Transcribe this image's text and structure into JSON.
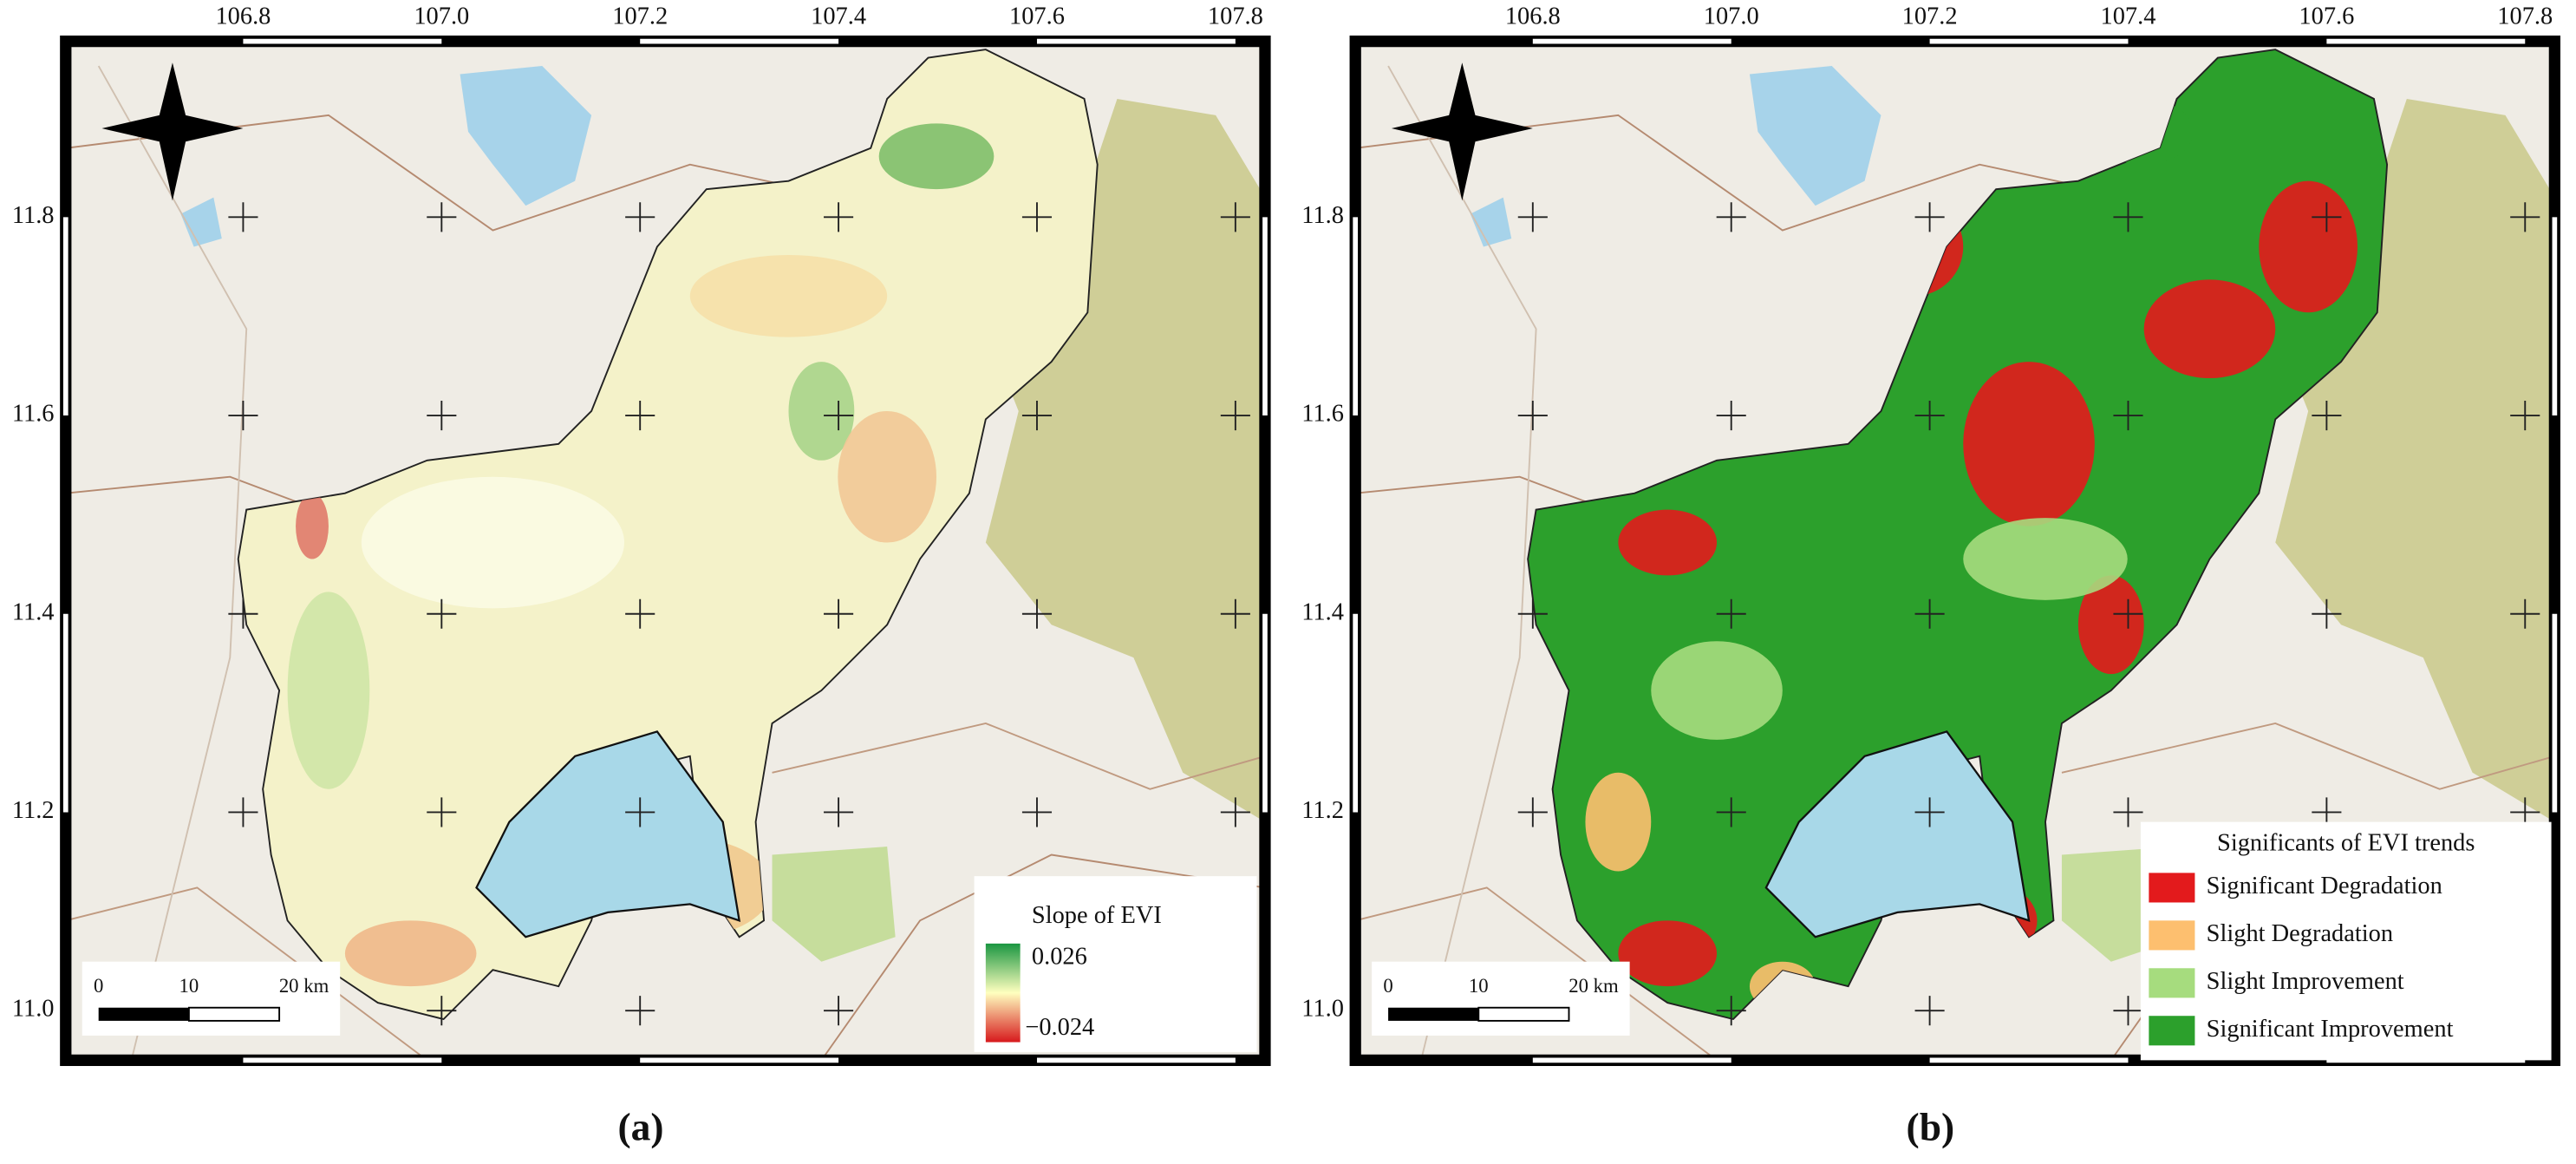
{
  "panels": [
    {
      "label": "(a)",
      "longitude_ticks": [
        "106.8",
        "107.0",
        "107.2",
        "107.4",
        "107.6",
        "107.8"
      ],
      "latitude_ticks": [
        "11.8",
        "11.6",
        "11.4",
        "11.2",
        "11.0"
      ],
      "scale_bar": [
        "0",
        "10",
        "20 km"
      ],
      "legend": {
        "title": "Slope of EVI",
        "max": "0.026",
        "min": "−0.024"
      }
    },
    {
      "label": "(b)",
      "longitude_ticks": [
        "106.8",
        "107.0",
        "107.2",
        "107.4",
        "107.6",
        "107.8"
      ],
      "latitude_ticks": [
        "11.8",
        "11.6",
        "11.4",
        "11.2",
        "11.0"
      ],
      "scale_bar": [
        "0",
        "10",
        "20 km"
      ],
      "legend": {
        "title": "Significants of EVI trends",
        "items": [
          {
            "label": "Significant Degradation",
            "color": "#e31a1c"
          },
          {
            "label": "Slight Degradation",
            "color": "#fdbf6f"
          },
          {
            "label": "Slight Improvement",
            "color": "#a6dc7e"
          },
          {
            "label": "Significant Improvement",
            "color": "#2ca02c"
          }
        ]
      }
    }
  ]
}
